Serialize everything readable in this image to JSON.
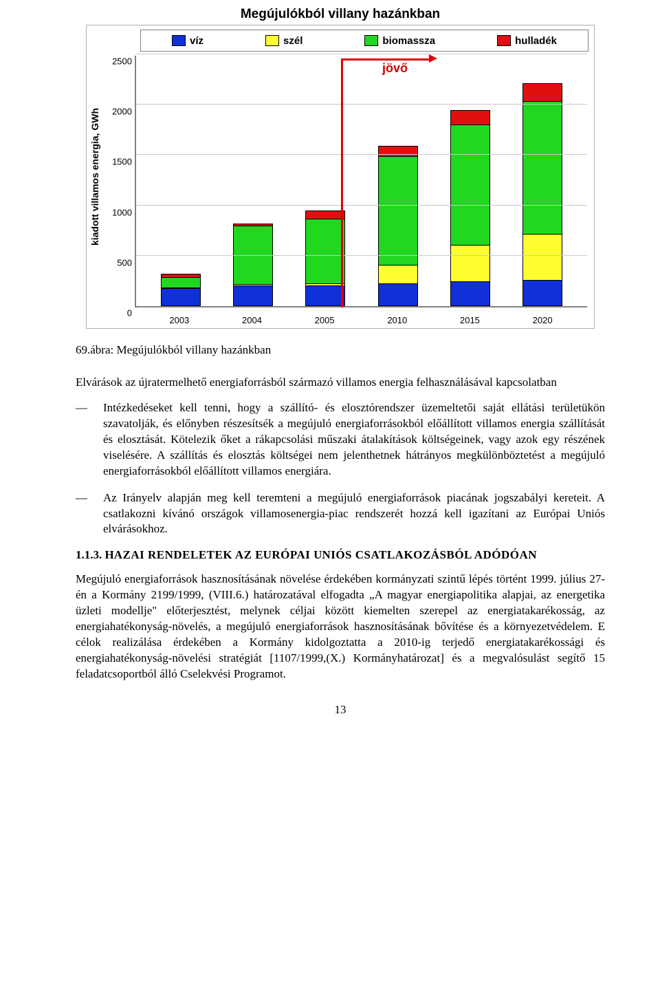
{
  "chart": {
    "type": "stacked-bar",
    "title": "Megújulókból villany hazánkban",
    "ylabel": "kiadott villamos energia, GWh",
    "ymax": 2500,
    "ytick_step": 500,
    "yticks": [
      "0",
      "500",
      "1000",
      "1500",
      "2000",
      "2500"
    ],
    "categories": [
      "2003",
      "2004",
      "2005",
      "2010",
      "2015",
      "2020"
    ],
    "series": [
      {
        "name": "víz",
        "color": "#1030d8"
      },
      {
        "name": "szél",
        "color": "#ffff30"
      },
      {
        "name": "biomassza",
        "color": "#20d820"
      },
      {
        "name": "hulladék",
        "color": "#e01010"
      }
    ],
    "stacks": [
      [
        170,
        10,
        100,
        40
      ],
      [
        200,
        10,
        580,
        30
      ],
      [
        200,
        20,
        640,
        90
      ],
      [
        220,
        180,
        1080,
        110
      ],
      [
        240,
        360,
        1200,
        150
      ],
      [
        250,
        460,
        1320,
        180
      ]
    ],
    "future_label": "jövő",
    "future_split_index": 3,
    "background_color": "#ffffff",
    "grid_color": "#c8c8c8",
    "axis_color": "#808080",
    "bar_border": "#000000",
    "title_fontsize": 19,
    "label_fontsize": 14,
    "tick_fontsize": 13
  },
  "caption": "69.ábra: Megújulókból villany hazánkban",
  "intro": "Elvárások az újratermelhető energiaforrásból származó villamos energia felhasználásával kapcsolatban",
  "bullets": [
    "Intézkedéseket kell tenni, hogy a szállító- és elosztórendszer üzemeltetői saját ellátási területükön szavatolják, és előnyben részesítsék a megújuló energiaforrásokból előállított villamos energia szállítását és elosztását. Kötelezik őket a rákapcsolási műszaki átalakítások költségeinek, vagy azok egy részének viselésére. A szállítás és elosztás költségei nem jelenthetnek hátrányos megkülönböztetést a megújuló energiaforrásokból előállított villamos energiára.",
    "Az Irányelv alapján meg kell teremteni a megújuló energiaforrások piacának jogszabályi kereteit. A csatlakozni kívánó országok villamosenergia-piac rendszerét hozzá kell igazítani az Európai Uniós elvárásokhoz."
  ],
  "section_num": "1.1.3. ",
  "section_prefix": "H",
  "section_rest": "AZAI RENDELETEK AZ ",
  "section_prefix2": "E",
  "section_rest2": "URÓPAI ",
  "section_prefix3": "U",
  "section_rest3": "NIÓS CSATLAKOZÁSBÓL ADÓDÓAN",
  "body_para": "Megújuló energiaforrások hasznosításának növelése érdekében kormányzati szintű lépés történt 1999. július 27-én a Kormány 2199/1999, (VIII.6.) határozatával elfogadta „A magyar energiapolitika alapjai, az energetika üzleti modellje\" előterjesztést, melynek céljai között kiemelten szerepel az energiatakarékosság, az energiahatékonyság-növelés, a megújuló energiaforrások hasznosításának bővítése és a környezetvédelem. E célok realizálása érdekében a Kormány kidolgoztatta a 2010-ig terjedő energiatakarékossági és energiahatékonyság-növelési stratégiát [1107/1999,(X.) Kormányhatározat] és a megvalósulást segítő 15 feladatcsoportból álló Cselekvési Programot.",
  "page_number": "13"
}
